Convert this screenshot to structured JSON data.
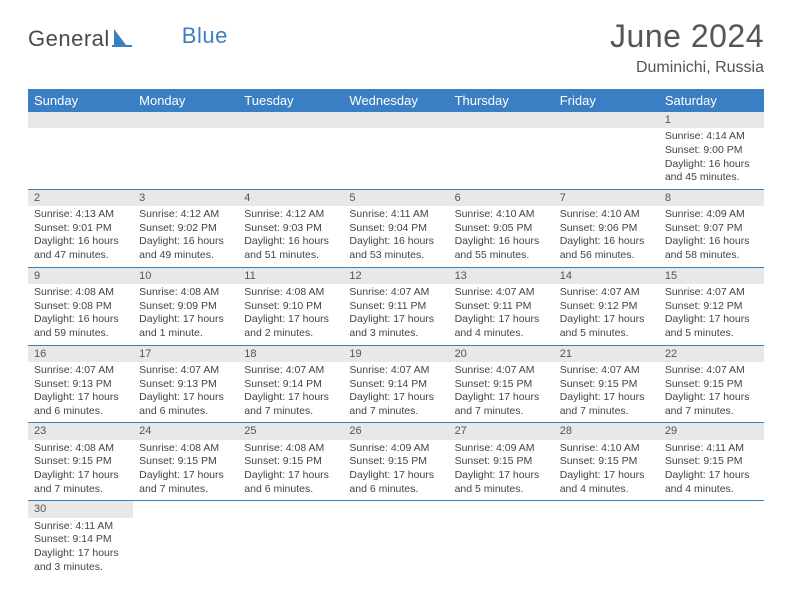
{
  "logo": {
    "part1": "General",
    "part2": "Blue"
  },
  "title": "June 2024",
  "location": "Duminichi, Russia",
  "colors": {
    "header_bg": "#3a7fc4",
    "header_text": "#ffffff",
    "daynum_bg": "#e8e8e8",
    "border": "#3a7fc4",
    "text": "#444444",
    "logo_gray": "#4a4a4a",
    "logo_blue": "#3a7fc4"
  },
  "weekdays": [
    "Sunday",
    "Monday",
    "Tuesday",
    "Wednesday",
    "Thursday",
    "Friday",
    "Saturday"
  ],
  "weeks": [
    [
      null,
      null,
      null,
      null,
      null,
      null,
      {
        "n": "1",
        "sr": "Sunrise: 4:14 AM",
        "ss": "Sunset: 9:00 PM",
        "dl": "Daylight: 16 hours and 45 minutes."
      }
    ],
    [
      {
        "n": "2",
        "sr": "Sunrise: 4:13 AM",
        "ss": "Sunset: 9:01 PM",
        "dl": "Daylight: 16 hours and 47 minutes."
      },
      {
        "n": "3",
        "sr": "Sunrise: 4:12 AM",
        "ss": "Sunset: 9:02 PM",
        "dl": "Daylight: 16 hours and 49 minutes."
      },
      {
        "n": "4",
        "sr": "Sunrise: 4:12 AM",
        "ss": "Sunset: 9:03 PM",
        "dl": "Daylight: 16 hours and 51 minutes."
      },
      {
        "n": "5",
        "sr": "Sunrise: 4:11 AM",
        "ss": "Sunset: 9:04 PM",
        "dl": "Daylight: 16 hours and 53 minutes."
      },
      {
        "n": "6",
        "sr": "Sunrise: 4:10 AM",
        "ss": "Sunset: 9:05 PM",
        "dl": "Daylight: 16 hours and 55 minutes."
      },
      {
        "n": "7",
        "sr": "Sunrise: 4:10 AM",
        "ss": "Sunset: 9:06 PM",
        "dl": "Daylight: 16 hours and 56 minutes."
      },
      {
        "n": "8",
        "sr": "Sunrise: 4:09 AM",
        "ss": "Sunset: 9:07 PM",
        "dl": "Daylight: 16 hours and 58 minutes."
      }
    ],
    [
      {
        "n": "9",
        "sr": "Sunrise: 4:08 AM",
        "ss": "Sunset: 9:08 PM",
        "dl": "Daylight: 16 hours and 59 minutes."
      },
      {
        "n": "10",
        "sr": "Sunrise: 4:08 AM",
        "ss": "Sunset: 9:09 PM",
        "dl": "Daylight: 17 hours and 1 minute."
      },
      {
        "n": "11",
        "sr": "Sunrise: 4:08 AM",
        "ss": "Sunset: 9:10 PM",
        "dl": "Daylight: 17 hours and 2 minutes."
      },
      {
        "n": "12",
        "sr": "Sunrise: 4:07 AM",
        "ss": "Sunset: 9:11 PM",
        "dl": "Daylight: 17 hours and 3 minutes."
      },
      {
        "n": "13",
        "sr": "Sunrise: 4:07 AM",
        "ss": "Sunset: 9:11 PM",
        "dl": "Daylight: 17 hours and 4 minutes."
      },
      {
        "n": "14",
        "sr": "Sunrise: 4:07 AM",
        "ss": "Sunset: 9:12 PM",
        "dl": "Daylight: 17 hours and 5 minutes."
      },
      {
        "n": "15",
        "sr": "Sunrise: 4:07 AM",
        "ss": "Sunset: 9:12 PM",
        "dl": "Daylight: 17 hours and 5 minutes."
      }
    ],
    [
      {
        "n": "16",
        "sr": "Sunrise: 4:07 AM",
        "ss": "Sunset: 9:13 PM",
        "dl": "Daylight: 17 hours and 6 minutes."
      },
      {
        "n": "17",
        "sr": "Sunrise: 4:07 AM",
        "ss": "Sunset: 9:13 PM",
        "dl": "Daylight: 17 hours and 6 minutes."
      },
      {
        "n": "18",
        "sr": "Sunrise: 4:07 AM",
        "ss": "Sunset: 9:14 PM",
        "dl": "Daylight: 17 hours and 7 minutes."
      },
      {
        "n": "19",
        "sr": "Sunrise: 4:07 AM",
        "ss": "Sunset: 9:14 PM",
        "dl": "Daylight: 17 hours and 7 minutes."
      },
      {
        "n": "20",
        "sr": "Sunrise: 4:07 AM",
        "ss": "Sunset: 9:15 PM",
        "dl": "Daylight: 17 hours and 7 minutes."
      },
      {
        "n": "21",
        "sr": "Sunrise: 4:07 AM",
        "ss": "Sunset: 9:15 PM",
        "dl": "Daylight: 17 hours and 7 minutes."
      },
      {
        "n": "22",
        "sr": "Sunrise: 4:07 AM",
        "ss": "Sunset: 9:15 PM",
        "dl": "Daylight: 17 hours and 7 minutes."
      }
    ],
    [
      {
        "n": "23",
        "sr": "Sunrise: 4:08 AM",
        "ss": "Sunset: 9:15 PM",
        "dl": "Daylight: 17 hours and 7 minutes."
      },
      {
        "n": "24",
        "sr": "Sunrise: 4:08 AM",
        "ss": "Sunset: 9:15 PM",
        "dl": "Daylight: 17 hours and 7 minutes."
      },
      {
        "n": "25",
        "sr": "Sunrise: 4:08 AM",
        "ss": "Sunset: 9:15 PM",
        "dl": "Daylight: 17 hours and 6 minutes."
      },
      {
        "n": "26",
        "sr": "Sunrise: 4:09 AM",
        "ss": "Sunset: 9:15 PM",
        "dl": "Daylight: 17 hours and 6 minutes."
      },
      {
        "n": "27",
        "sr": "Sunrise: 4:09 AM",
        "ss": "Sunset: 9:15 PM",
        "dl": "Daylight: 17 hours and 5 minutes."
      },
      {
        "n": "28",
        "sr": "Sunrise: 4:10 AM",
        "ss": "Sunset: 9:15 PM",
        "dl": "Daylight: 17 hours and 4 minutes."
      },
      {
        "n": "29",
        "sr": "Sunrise: 4:11 AM",
        "ss": "Sunset: 9:15 PM",
        "dl": "Daylight: 17 hours and 4 minutes."
      }
    ],
    [
      {
        "n": "30",
        "sr": "Sunrise: 4:11 AM",
        "ss": "Sunset: 9:14 PM",
        "dl": "Daylight: 17 hours and 3 minutes."
      },
      null,
      null,
      null,
      null,
      null,
      null
    ]
  ]
}
